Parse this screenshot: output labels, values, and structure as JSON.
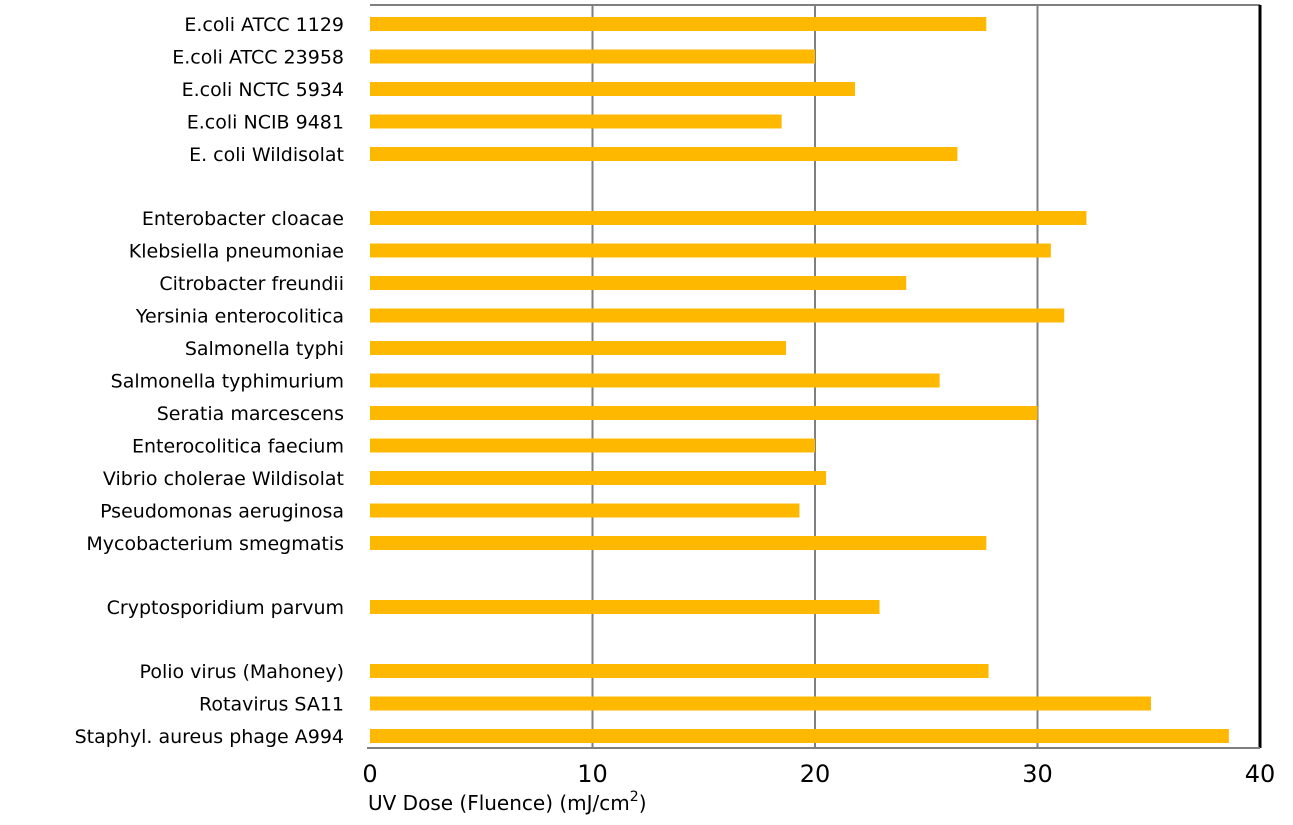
{
  "chart_data": {
    "type": "bar",
    "orientation": "horizontal",
    "xlabel": "UV Dose (Fluence) (mJ/cm",
    "xlabel_superscript": "2",
    "xlabel_suffix": ")",
    "xlim": [
      0,
      40
    ],
    "xticks": [
      "0",
      "10",
      "20",
      "30",
      "40"
    ],
    "grid": true,
    "legend": "none",
    "bar_color": "#FFB800",
    "bars": [
      {
        "category": "E.coli ATCC 1129",
        "value": 27.7,
        "group": 0
      },
      {
        "category": "E.coli ATCC 23958",
        "value": 20,
        "group": 0
      },
      {
        "category": "E.coli NCTC 5934",
        "value": 21.8,
        "group": 0
      },
      {
        "category": "E.coli NCIB 9481",
        "value": 18.5,
        "group": 0
      },
      {
        "category": "E. coli Wildisolat",
        "value": 26.4,
        "group": 0
      },
      {
        "category": "Enterobacter cloacae",
        "value": 32.2,
        "group": 1
      },
      {
        "category": "Klebsiella pneumoniae",
        "value": 30.6,
        "group": 1
      },
      {
        "category": "Citrobacter freundii",
        "value": 24.1,
        "group": 1
      },
      {
        "category": "Yersinia enterocolitica",
        "value": 31.2,
        "group": 1
      },
      {
        "category": "Salmonella typhi",
        "value": 18.7,
        "group": 1
      },
      {
        "category": "Salmonella typhimurium",
        "value": 25.6,
        "group": 1
      },
      {
        "category": "Seratia marcescens",
        "value": 30,
        "group": 1
      },
      {
        "category": "Enterocolitica faecium",
        "value": 20,
        "group": 1
      },
      {
        "category": "Vibrio cholerae Wildisolat",
        "value": 20.5,
        "group": 1
      },
      {
        "category": "Pseudomonas aeruginosa",
        "value": 19.3,
        "group": 1
      },
      {
        "category": "Mycobacterium smegmatis",
        "value": 27.7,
        "group": 1
      },
      {
        "category": "Cryptosporidium parvum",
        "value": 22.9,
        "group": 2
      },
      {
        "category": "Polio virus (Mahoney)",
        "value": 27.8,
        "group": 3
      },
      {
        "category": "Rotavirus SA11",
        "value": 35.1,
        "group": 3
      },
      {
        "category": "Staphyl. aureus phage A994",
        "value": 38.6,
        "group": 3
      }
    ]
  }
}
